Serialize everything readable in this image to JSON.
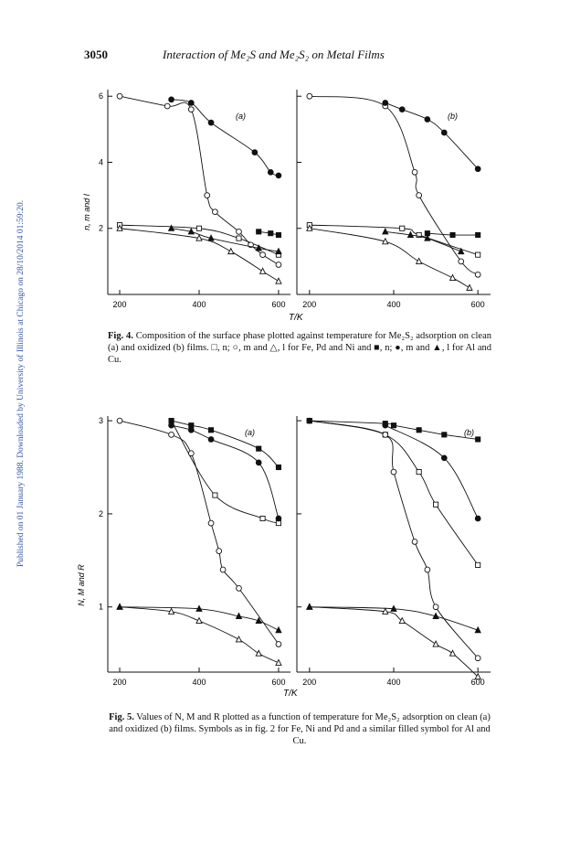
{
  "header": {
    "page_number": "3050",
    "running_title": "Interaction of Me₂S and Me₂S₂ on Metal Films"
  },
  "side_note": "Published on 01 January 1988. Downloaded by University of Illinois at Chicago on 28/10/2014 01:59:20.",
  "fig4": {
    "ylabel": "n, m and l",
    "xlabel": "T/K",
    "panel_a_label": "(a)",
    "panel_b_label": "(b)",
    "y_ticks": [
      "2",
      "4",
      "6"
    ],
    "x_ticks_a": [
      "200",
      "400",
      "600"
    ],
    "x_ticks_b": [
      "200",
      "400",
      "600"
    ],
    "caption_label": "Fig. 4.",
    "caption_text": "Composition of the surface phase plotted against temperature for Me₂S₂ adsorption on clean (a) and oxidized (b) films. □, n; ○, m and △, l for Fe, Pd and Ni and ■, n; ●, m and ▲, l for Al and Cu."
  },
  "fig5": {
    "ylabel": "N, M and R",
    "xlabel": "T/K",
    "panel_a_label": "(a)",
    "panel_b_label": "(b)",
    "y_ticks": [
      "1",
      "2",
      "3"
    ],
    "x_ticks_a": [
      "200",
      "400",
      "600"
    ],
    "x_ticks_b": [
      "200",
      "400",
      "600"
    ],
    "caption_label": "Fig. 5.",
    "caption_text": "Values of N, M and R plotted as a function of temperature for Me₂S₂ adsorption on clean (a) and oxidized (b) films. Symbols as in fig. 2 for Fe, Ni and Pd and a similar filled symbol for Al and Cu."
  },
  "chart_data": [
    {
      "type": "scatter",
      "figure": "Fig. 4",
      "panel": "(a)",
      "xlabel": "T/K",
      "ylabel": "n, m and l",
      "xlim": [
        170,
        630
      ],
      "ylim": [
        0,
        6.2
      ],
      "series": [
        {
          "marker": "open-square",
          "x": [
            200,
            400,
            500,
            600
          ],
          "y": [
            2.1,
            2.0,
            1.7,
            1.2
          ]
        },
        {
          "marker": "open-circle",
          "x": [
            200,
            320,
            380,
            420,
            440,
            500,
            530,
            560,
            600
          ],
          "y": [
            6.0,
            5.7,
            5.6,
            3.0,
            2.5,
            1.9,
            1.5,
            1.2,
            0.9
          ]
        },
        {
          "marker": "open-triangle",
          "x": [
            200,
            400,
            480,
            560,
            600
          ],
          "y": [
            2.0,
            1.7,
            1.3,
            0.7,
            0.4
          ]
        },
        {
          "marker": "filled-square",
          "x": [
            550,
            580,
            600
          ],
          "y": [
            1.9,
            1.85,
            1.8
          ]
        },
        {
          "marker": "filled-circle",
          "x": [
            330,
            380,
            430,
            540,
            580,
            600
          ],
          "y": [
            5.9,
            5.8,
            5.2,
            4.3,
            3.7,
            3.6
          ]
        },
        {
          "marker": "filled-triangle",
          "x": [
            330,
            380,
            430,
            550,
            600
          ],
          "y": [
            2.0,
            1.9,
            1.7,
            1.4,
            1.3
          ]
        }
      ]
    },
    {
      "type": "scatter",
      "figure": "Fig. 4",
      "panel": "(b)",
      "xlabel": "T/K",
      "ylabel": "n, m and l",
      "xlim": [
        170,
        630
      ],
      "ylim": [
        0,
        6.2
      ],
      "series": [
        {
          "marker": "open-square",
          "x": [
            200,
            420,
            460,
            600
          ],
          "y": [
            2.1,
            2.0,
            1.8,
            1.2
          ]
        },
        {
          "marker": "open-circle",
          "x": [
            200,
            380,
            450,
            460,
            560,
            600
          ],
          "y": [
            6.0,
            5.7,
            3.7,
            3.0,
            1.0,
            0.6
          ]
        },
        {
          "marker": "open-triangle",
          "x": [
            200,
            380,
            460,
            540,
            580
          ],
          "y": [
            2.0,
            1.6,
            1.0,
            0.5,
            0.2
          ]
        },
        {
          "marker": "filled-square",
          "x": [
            480,
            540,
            600
          ],
          "y": [
            1.85,
            1.8,
            1.8
          ]
        },
        {
          "marker": "filled-circle",
          "x": [
            380,
            420,
            480,
            520,
            600
          ],
          "y": [
            5.8,
            5.6,
            5.3,
            4.9,
            3.8
          ]
        },
        {
          "marker": "filled-triangle",
          "x": [
            380,
            440,
            480,
            560
          ],
          "y": [
            1.9,
            1.8,
            1.7,
            1.3
          ]
        }
      ]
    },
    {
      "type": "scatter",
      "figure": "Fig. 5",
      "panel": "(a)",
      "xlabel": "T/K",
      "ylabel": "N, M and R",
      "xlim": [
        170,
        630
      ],
      "ylim": [
        0.3,
        3.05
      ],
      "series": [
        {
          "marker": "open-square",
          "x": [
            330,
            440,
            560,
            600
          ],
          "y": [
            3.0,
            2.2,
            1.95,
            1.9
          ]
        },
        {
          "marker": "open-circle",
          "x": [
            200,
            330,
            380,
            430,
            450,
            460,
            500,
            600
          ],
          "y": [
            3.0,
            2.85,
            2.65,
            1.9,
            1.6,
            1.4,
            1.2,
            0.6
          ]
        },
        {
          "marker": "open-triangle",
          "x": [
            200,
            330,
            400,
            500,
            550,
            600
          ],
          "y": [
            1.0,
            0.95,
            0.85,
            0.65,
            0.5,
            0.4
          ]
        },
        {
          "marker": "filled-square",
          "x": [
            330,
            380,
            430,
            550,
            600
          ],
          "y": [
            3.0,
            2.95,
            2.9,
            2.7,
            2.5
          ]
        },
        {
          "marker": "filled-circle",
          "x": [
            330,
            380,
            430,
            550,
            600
          ],
          "y": [
            2.95,
            2.9,
            2.8,
            2.55,
            1.95
          ]
        },
        {
          "marker": "filled-triangle",
          "x": [
            200,
            400,
            500,
            550,
            600
          ],
          "y": [
            1.0,
            0.98,
            0.9,
            0.85,
            0.75
          ]
        }
      ]
    },
    {
      "type": "scatter",
      "figure": "Fig. 5",
      "panel": "(b)",
      "xlabel": "T/K",
      "ylabel": "N, M and R",
      "xlim": [
        170,
        630
      ],
      "ylim": [
        0.3,
        3.05
      ],
      "series": [
        {
          "marker": "open-square",
          "x": [
            200,
            380,
            460,
            500,
            600
          ],
          "y": [
            3.0,
            2.85,
            2.45,
            2.1,
            1.45
          ]
        },
        {
          "marker": "open-circle",
          "x": [
            200,
            380,
            400,
            450,
            480,
            500,
            600
          ],
          "y": [
            3.0,
            2.85,
            2.45,
            1.7,
            1.4,
            1.0,
            0.45
          ]
        },
        {
          "marker": "open-triangle",
          "x": [
            200,
            380,
            420,
            500,
            540,
            600
          ],
          "y": [
            1.0,
            0.95,
            0.85,
            0.6,
            0.5,
            0.25
          ]
        },
        {
          "marker": "filled-square",
          "x": [
            200,
            380,
            400,
            460,
            520,
            600
          ],
          "y": [
            3.0,
            2.97,
            2.95,
            2.9,
            2.85,
            2.8
          ]
        },
        {
          "marker": "filled-circle",
          "x": [
            380,
            520,
            600
          ],
          "y": [
            2.95,
            2.6,
            1.95
          ]
        },
        {
          "marker": "filled-triangle",
          "x": [
            200,
            400,
            500,
            600
          ],
          "y": [
            1.0,
            0.98,
            0.9,
            0.75
          ]
        }
      ]
    }
  ]
}
